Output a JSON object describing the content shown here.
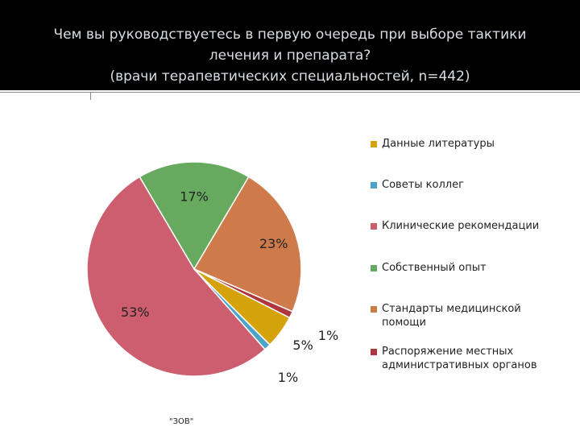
{
  "title": {
    "lines": [
      "Чем вы руководствуетесь в первую очередь при выборе тактики",
      "лечения и препарата?",
      "(врачи терапевтических специальностей, n=442)"
    ]
  },
  "footer": "\"ЗОВ\"",
  "chart_data": {
    "type": "pie",
    "title": "Чем вы руководствуетесь в первую очередь при выборе тактики лечения и препарата? (врачи терапевтических специальностей, n=442)",
    "legend_position": "right",
    "slices": [
      {
        "label": "Данные литературы",
        "value": 5,
        "value_label": "5%",
        "color": "#d4a20a"
      },
      {
        "label": "Советы коллег",
        "value": 1,
        "value_label": "1%",
        "color": "#4ba3c7"
      },
      {
        "label": "Клинические рекомендации",
        "value": 53,
        "value_label": "53%",
        "color": "#cd5e6f"
      },
      {
        "label": "Собственный опыт",
        "value": 17,
        "value_label": "17%",
        "color": "#67aa5f"
      },
      {
        "label": "Стандарты медицинской помощи",
        "value": 23,
        "value_label": "23%",
        "color": "#cf7a4a"
      },
      {
        "label": "Распоряжение местных административных органов",
        "value": 1,
        "value_label": "1%",
        "color": "#b0363d"
      }
    ]
  }
}
